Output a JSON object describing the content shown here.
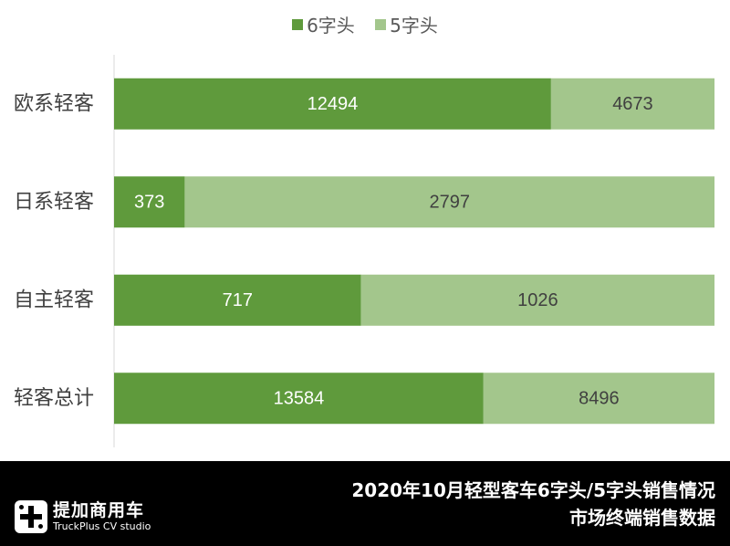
{
  "chart_data": {
    "type": "bar",
    "orientation": "horizontal",
    "stacked": true,
    "normalized": true,
    "categories": [
      "欧系轻客",
      "日系轻客",
      "自主轻客",
      "轻客总计"
    ],
    "series": [
      {
        "name": "6字头",
        "values": [
          12494,
          373,
          717,
          13584
        ],
        "color": "#5F9A3C",
        "label_color": "#ffffff"
      },
      {
        "name": "5字头",
        "values": [
          4673,
          2797,
          1026,
          8496
        ],
        "color": "#A3C68C",
        "label_color": "#404040"
      }
    ],
    "legend_position": "top",
    "grid": false
  },
  "footer": {
    "title_line1": "2020年10月轻型客车6字头/5字头销售情况",
    "title_line2": "市场终端销售数据",
    "logo_name": "提加商用车",
    "logo_sub": "TruckPlus CV studio"
  }
}
